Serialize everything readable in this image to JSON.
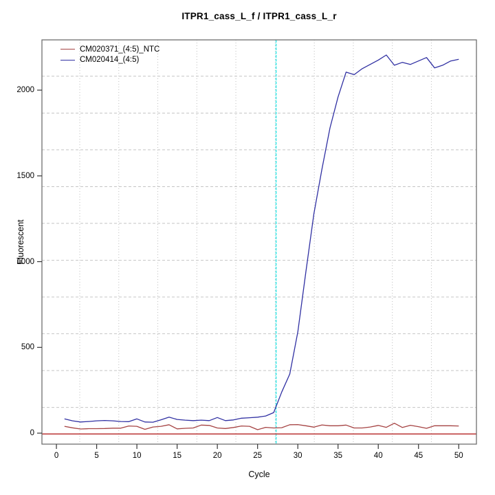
{
  "figure": {
    "title": "ITPR1_cass_L_f / ITPR1_cass_L_r"
  },
  "chart_data": {
    "type": "line",
    "title": "ITPR1_cass_L_f / ITPR1_cass_L_r",
    "xlabel": "Cycle",
    "ylabel": "Fluorescent",
    "xlim": [
      -1.8,
      52.2
    ],
    "ylim": [
      -64,
      2293
    ],
    "x_ticks": [
      0,
      5,
      10,
      15,
      20,
      25,
      30,
      35,
      40,
      45,
      50
    ],
    "y_ticks": [
      0,
      500,
      1000,
      1500,
      2000
    ],
    "grid": true,
    "legend_position": "top-left",
    "threshold_line": {
      "y": -5,
      "color": "#C24B4B"
    },
    "ct_line": {
      "x": 27.3,
      "color": "#3FE6E6"
    },
    "x": [
      1,
      2,
      3,
      4,
      5,
      6,
      7,
      8,
      9,
      10,
      11,
      12,
      13,
      14,
      15,
      16,
      17,
      18,
      19,
      20,
      21,
      22,
      23,
      24,
      25,
      26,
      27,
      28,
      29,
      30,
      31,
      32,
      33,
      34,
      35,
      36,
      37,
      38,
      39,
      40,
      41,
      42,
      43,
      44,
      45,
      46,
      47,
      48,
      49,
      50
    ],
    "series": [
      {
        "name": "CM020371_(4:5)_NTC",
        "color": "#A54242",
        "values": [
          40,
          31,
          24,
          26,
          26,
          27,
          29,
          29,
          42,
          40,
          22,
          36,
          40,
          49,
          25,
          28,
          30,
          47,
          45,
          30,
          27,
          33,
          42,
          40,
          20,
          34,
          30,
          32,
          49,
          50,
          43,
          35,
          48,
          43,
          43,
          47,
          30,
          30,
          36,
          45,
          34,
          58,
          33,
          46,
          38,
          28,
          43,
          43,
          43,
          42
        ]
      },
      {
        "name": "CM020414_(4:5)",
        "color": "#2F2FA2",
        "values": [
          83,
          72,
          65,
          68,
          72,
          74,
          72,
          68,
          67,
          83,
          65,
          64,
          78,
          93,
          80,
          76,
          73,
          76,
          73,
          91,
          73,
          77,
          87,
          90,
          93,
          100,
          120,
          240,
          345,
          590,
          940,
          1280,
          1540,
          1780,
          1960,
          2105,
          2090,
          2125,
          2150,
          2175,
          2205,
          2145,
          2162,
          2150,
          2170,
          2190,
          2130,
          2145,
          2170,
          2180
        ]
      }
    ]
  }
}
